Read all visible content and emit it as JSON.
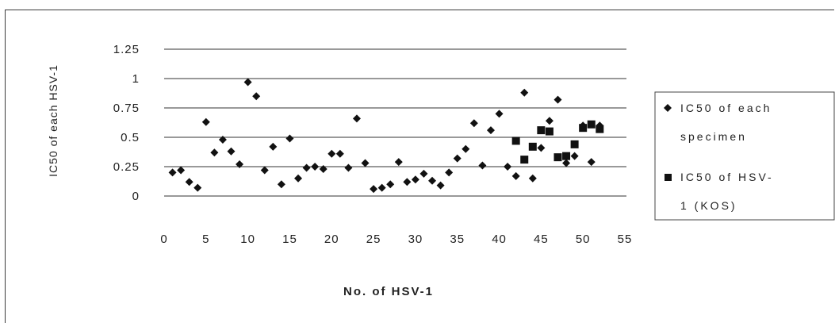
{
  "chart_data": {
    "type": "scatter",
    "xlabel": "No. of HSV-1",
    "ylabel": "IC50 of each  HSV-1",
    "xlim": [
      0,
      55
    ],
    "ylim": [
      0,
      1.25
    ],
    "xticks": [
      "0",
      "5",
      "10",
      "15",
      "20",
      "25",
      "30",
      "35",
      "40",
      "45",
      "50",
      "55"
    ],
    "yticks": [
      "0",
      "0.25",
      "0.5",
      "0.75",
      "1",
      "1.25"
    ],
    "grid": "horizontal",
    "legend_position": "right",
    "series": [
      {
        "name": "IC50 of each specimen",
        "marker": "diamond",
        "color": "#111111",
        "x": [
          1,
          2,
          3,
          4,
          5,
          6,
          7,
          8,
          9,
          10,
          11,
          12,
          13,
          14,
          15,
          16,
          17,
          18,
          19,
          20,
          21,
          22,
          23,
          24,
          25,
          26,
          27,
          28,
          29,
          30,
          31,
          32,
          33,
          34,
          35,
          36,
          37,
          38,
          39,
          40,
          41,
          42,
          43,
          44,
          45,
          46,
          47,
          48,
          49,
          50,
          51,
          52
        ],
        "y": [
          0.2,
          0.22,
          0.12,
          0.07,
          0.63,
          0.37,
          0.48,
          0.38,
          0.27,
          0.97,
          0.85,
          0.22,
          0.42,
          0.1,
          0.49,
          0.15,
          0.24,
          0.25,
          0.23,
          0.36,
          0.36,
          0.24,
          0.66,
          0.28,
          0.06,
          0.07,
          0.1,
          0.29,
          0.12,
          0.14,
          0.19,
          0.13,
          0.09,
          0.2,
          0.32,
          0.4,
          0.62,
          0.26,
          0.56,
          0.7,
          0.25,
          0.17,
          0.88,
          0.15,
          0.41,
          0.64,
          0.82,
          0.28,
          0.34,
          0.6,
          0.29,
          0.6
        ]
      },
      {
        "name": "IC50 of HSV-1 (KOS)",
        "marker": "square",
        "color": "#111111",
        "x": [
          42,
          43,
          44,
          45,
          46,
          47,
          48,
          49,
          50,
          51,
          52
        ],
        "y": [
          0.47,
          0.31,
          0.42,
          0.56,
          0.55,
          0.33,
          0.34,
          0.44,
          0.58,
          0.61,
          0.57
        ]
      }
    ]
  },
  "legend": {
    "items": [
      {
        "line1": "IC50 of each",
        "line2": "specimen"
      },
      {
        "line1": "IC50 of HSV-",
        "line2": "1 (KOS)"
      }
    ]
  }
}
